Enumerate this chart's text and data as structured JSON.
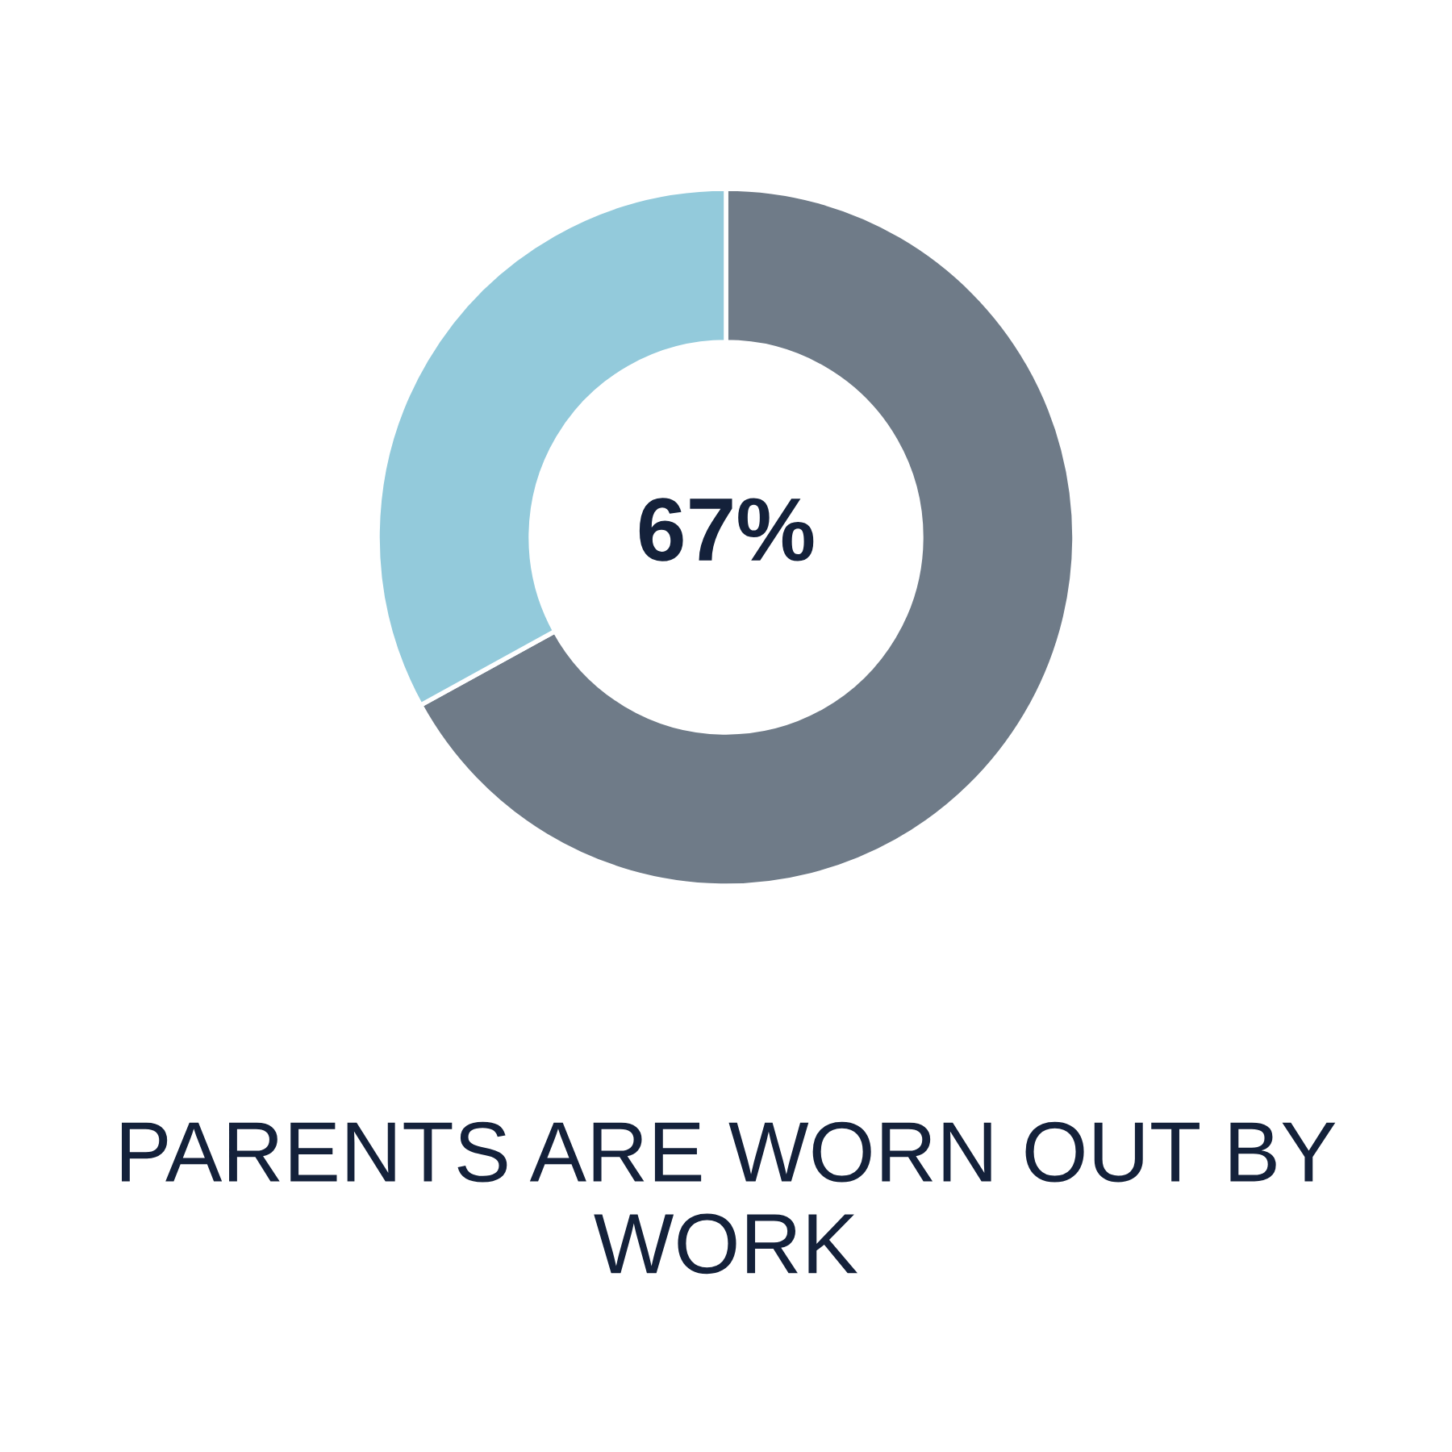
{
  "chart_data": {
    "type": "donut",
    "title": "PARENTS ARE WORN OUT BY WORK",
    "categories": [
      null,
      null
    ],
    "values": [
      67,
      33
    ],
    "colors": [
      "#6f7b88",
      "#93cadb"
    ],
    "value_labels": [
      "67%",
      null
    ]
  }
}
